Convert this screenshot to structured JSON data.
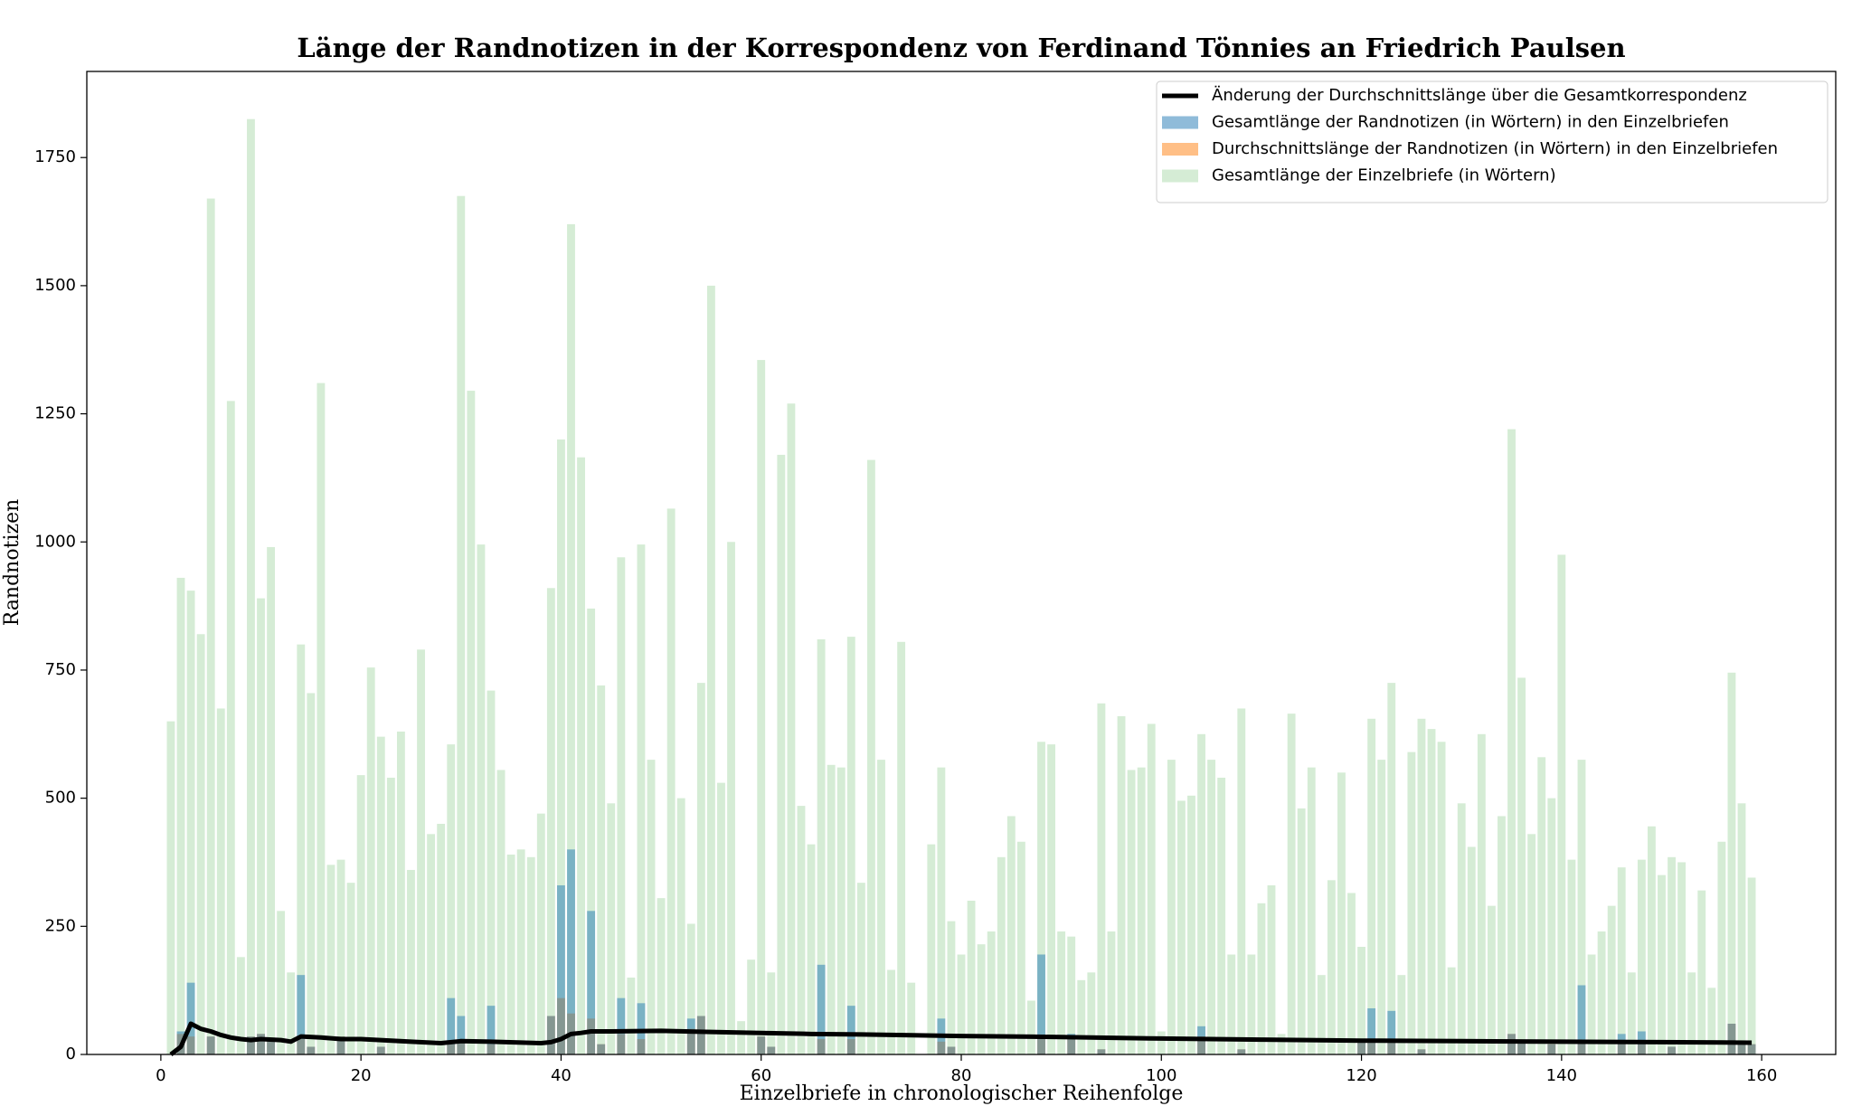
{
  "chart_data": {
    "type": "bar",
    "title": "Länge der Randnotizen in der Korrespondenz von Ferdinand Tönnies an Friedrich Paulsen",
    "xlabel": "Einzelbriefe in chronologischer Reihenfolge",
    "ylabel": "Randnotizen",
    "legend": "upper right",
    "xlim": [
      -7.4,
      167.4
    ],
    "ylim": [
      0,
      1918
    ],
    "xticks": [
      0,
      20,
      40,
      60,
      80,
      100,
      120,
      140,
      160
    ],
    "yticks": [
      0,
      250,
      500,
      750,
      1000,
      1250,
      1500,
      1750
    ],
    "bar_width": 0.8,
    "x": [
      1,
      2,
      3,
      4,
      5,
      6,
      7,
      8,
      9,
      10,
      11,
      12,
      13,
      14,
      15,
      16,
      17,
      18,
      19,
      20,
      21,
      22,
      23,
      24,
      25,
      26,
      27,
      28,
      29,
      30,
      31,
      32,
      33,
      34,
      35,
      36,
      37,
      38,
      39,
      40,
      41,
      42,
      43,
      44,
      45,
      46,
      47,
      48,
      49,
      50,
      51,
      52,
      53,
      54,
      55,
      56,
      57,
      58,
      59,
      60,
      61,
      62,
      63,
      64,
      65,
      66,
      67,
      68,
      69,
      70,
      71,
      72,
      73,
      74,
      75,
      76,
      77,
      78,
      79,
      80,
      81,
      82,
      83,
      84,
      85,
      86,
      87,
      88,
      89,
      90,
      91,
      92,
      93,
      94,
      95,
      96,
      97,
      98,
      99,
      100,
      101,
      102,
      103,
      104,
      105,
      106,
      107,
      108,
      109,
      110,
      111,
      112,
      113,
      114,
      115,
      116,
      117,
      118,
      119,
      120,
      121,
      122,
      123,
      124,
      125,
      126,
      127,
      128,
      129,
      130,
      131,
      132,
      133,
      134,
      135,
      136,
      137,
      138,
      139,
      140,
      141,
      142,
      143,
      144,
      145,
      146,
      147,
      148,
      149,
      150,
      151,
      152,
      153,
      154,
      155,
      156,
      157,
      158,
      159
    ],
    "series": [
      {
        "name": "Änderung der Durchschnittslänge über die Gesamtkorrespondenz",
        "type": "line",
        "color": "#000000",
        "x": [
          1,
          2,
          3,
          4,
          5,
          6,
          7,
          8,
          9,
          10,
          12,
          13,
          14,
          16,
          18,
          20,
          25,
          28,
          30,
          33,
          38,
          39,
          40,
          41,
          42,
          43,
          45,
          50,
          55,
          60,
          65,
          70,
          80,
          90,
          100,
          110,
          120,
          130,
          140,
          150,
          159
        ],
        "values": [
          0,
          15,
          60,
          50,
          45,
          38,
          33,
          30,
          28,
          30,
          28,
          25,
          35,
          33,
          30,
          30,
          25,
          22,
          26,
          25,
          22,
          24,
          30,
          40,
          42,
          45,
          45,
          46,
          44,
          42,
          40,
          39,
          36,
          34,
          31,
          29,
          27,
          26,
          25,
          24,
          23
        ]
      },
      {
        "name": "Gesamtlänge der Randnotizen (in Wörtern) in den Einzelbriefen",
        "type": "bar",
        "color": "#1f77b4",
        "alpha": 0.5,
        "values": [
          0,
          45,
          140,
          0,
          35,
          0,
          0,
          0,
          35,
          40,
          30,
          0,
          0,
          155,
          15,
          0,
          0,
          35,
          0,
          0,
          0,
          15,
          0,
          0,
          0,
          0,
          0,
          0,
          110,
          75,
          0,
          0,
          95,
          0,
          0,
          0,
          0,
          0,
          75,
          330,
          400,
          0,
          280,
          20,
          0,
          110,
          0,
          100,
          0,
          0,
          0,
          0,
          70,
          75,
          0,
          0,
          0,
          0,
          0,
          35,
          15,
          0,
          0,
          0,
          0,
          175,
          0,
          0,
          95,
          0,
          0,
          0,
          0,
          0,
          0,
          0,
          0,
          70,
          15,
          0,
          0,
          0,
          0,
          0,
          0,
          0,
          0,
          195,
          0,
          0,
          40,
          0,
          0,
          10,
          0,
          0,
          0,
          0,
          0,
          0,
          0,
          0,
          0,
          55,
          0,
          0,
          0,
          10,
          0,
          0,
          0,
          0,
          0,
          0,
          0,
          0,
          0,
          0,
          0,
          25,
          90,
          0,
          85,
          0,
          0,
          10,
          0,
          0,
          0,
          0,
          0,
          0,
          0,
          0,
          40,
          25,
          0,
          0,
          20,
          0,
          0,
          135,
          0,
          0,
          0,
          40,
          0,
          45,
          0,
          0,
          15,
          0,
          0,
          0,
          0,
          0,
          60,
          25,
          20
        ]
      },
      {
        "name": "Durchschnittslänge der Randnotizen (in Wörtern) in den Einzelbriefen",
        "type": "bar",
        "color": "#ff7f0e",
        "alpha": 0.5,
        "values": [
          0,
          40,
          35,
          0,
          35,
          0,
          0,
          0,
          35,
          40,
          30,
          0,
          0,
          30,
          15,
          0,
          0,
          35,
          0,
          0,
          0,
          15,
          0,
          0,
          0,
          0,
          0,
          0,
          20,
          25,
          0,
          0,
          20,
          0,
          0,
          0,
          0,
          0,
          75,
          110,
          80,
          0,
          70,
          20,
          0,
          40,
          0,
          30,
          0,
          0,
          0,
          0,
          50,
          75,
          0,
          0,
          0,
          0,
          0,
          35,
          15,
          0,
          0,
          0,
          0,
          30,
          0,
          0,
          30,
          0,
          0,
          0,
          0,
          0,
          0,
          0,
          0,
          25,
          15,
          0,
          0,
          0,
          0,
          0,
          0,
          0,
          0,
          35,
          0,
          0,
          35,
          0,
          0,
          10,
          0,
          0,
          0,
          0,
          0,
          0,
          0,
          0,
          0,
          35,
          0,
          0,
          0,
          10,
          0,
          0,
          0,
          0,
          0,
          0,
          0,
          0,
          0,
          0,
          0,
          25,
          25,
          0,
          30,
          0,
          0,
          10,
          0,
          0,
          0,
          0,
          0,
          0,
          0,
          0,
          40,
          25,
          0,
          0,
          20,
          0,
          0,
          25,
          0,
          0,
          0,
          25,
          0,
          20,
          0,
          0,
          15,
          0,
          0,
          0,
          0,
          0,
          60,
          25,
          20
        ]
      },
      {
        "name": "Gesamtlänge der Einzelbriefe (in Wörtern)",
        "type": "bar",
        "color": "#2ca02c",
        "alpha": 0.2,
        "values": [
          650,
          930,
          905,
          820,
          1670,
          675,
          1275,
          190,
          1825,
          890,
          990,
          280,
          160,
          800,
          705,
          1310,
          370,
          380,
          335,
          545,
          755,
          620,
          540,
          630,
          360,
          790,
          430,
          450,
          605,
          1675,
          1295,
          995,
          710,
          555,
          390,
          400,
          385,
          470,
          910,
          1200,
          1620,
          1165,
          870,
          720,
          490,
          970,
          150,
          995,
          575,
          305,
          1065,
          500,
          255,
          725,
          1500,
          530,
          1000,
          65,
          185,
          1355,
          160,
          1170,
          1270,
          485,
          410,
          810,
          565,
          560,
          815,
          335,
          1160,
          575,
          165,
          805,
          140,
          0,
          410,
          560,
          260,
          195,
          300,
          215,
          240,
          385,
          465,
          415,
          105,
          610,
          605,
          240,
          230,
          145,
          160,
          685,
          240,
          660,
          555,
          560,
          645,
          45,
          575,
          495,
          505,
          625,
          575,
          540,
          195,
          675,
          195,
          295,
          330,
          40,
          665,
          480,
          560,
          155,
          340,
          550,
          315,
          210,
          655,
          575,
          725,
          155,
          590,
          655,
          635,
          610,
          170,
          490,
          405,
          625,
          290,
          465,
          1220,
          735,
          430,
          580,
          500,
          975,
          380,
          575,
          195,
          240,
          290,
          365,
          160,
          380,
          445,
          350,
          385,
          375,
          160,
          320,
          130,
          415,
          745,
          490,
          345
        ]
      }
    ]
  }
}
